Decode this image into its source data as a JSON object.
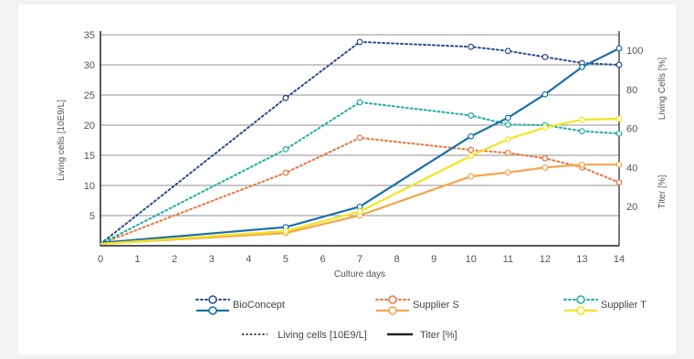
{
  "chart_data": {
    "type": "line",
    "xlabel": "Culture days",
    "ylabel_left": "Living cells [10E9/L]",
    "ylabel_right_upper": "Living Cells [%]",
    "ylabel_right_lower": "Titer [%]",
    "x_ticks": [
      0,
      1,
      2,
      3,
      4,
      5,
      6,
      7,
      8,
      9,
      10,
      11,
      12,
      13,
      14
    ],
    "xlim": [
      0,
      14
    ],
    "y_left_ticks": [
      5,
      10,
      15,
      20,
      25,
      30,
      35
    ],
    "ylim_left": [
      0,
      35
    ],
    "y_right_ticks": [
      20,
      40,
      60,
      80,
      100
    ],
    "ylim_right": [
      0,
      108
    ],
    "grid": "horizontal",
    "series": [
      {
        "name": "BioConcept",
        "kind": "living_cells",
        "style": "dotted",
        "color": "#2c4a8c",
        "axis": "left",
        "x": [
          0,
          5,
          7,
          10,
          11,
          12,
          13,
          14
        ],
        "y": [
          0.3,
          24.5,
          33.8,
          33.0,
          32.3,
          31.3,
          30.3,
          30.0
        ]
      },
      {
        "name": "Supplier S",
        "kind": "living_cells",
        "style": "dotted",
        "color": "#f0733c",
        "axis": "left",
        "x": [
          0,
          5,
          7,
          10,
          11,
          12,
          13,
          14
        ],
        "y": [
          0.3,
          12.1,
          17.9,
          15.9,
          15.4,
          14.5,
          13.0,
          10.5
        ]
      },
      {
        "name": "Supplier T",
        "kind": "living_cells",
        "style": "dotted",
        "color": "#1fada3",
        "axis": "left",
        "x": [
          0,
          5,
          7,
          10,
          11,
          12,
          13,
          14
        ],
        "y": [
          0.3,
          16.0,
          23.8,
          21.6,
          20.1,
          20.0,
          19.0,
          18.6
        ]
      },
      {
        "name": "BioConcept",
        "kind": "titer",
        "style": "solid",
        "color": "#1a6fab",
        "axis": "right",
        "x": [
          0,
          5,
          7,
          10,
          11,
          12,
          13,
          14
        ],
        "y": [
          1.5,
          9.5,
          20.0,
          56.0,
          65.5,
          77.5,
          91.5,
          101.0
        ]
      },
      {
        "name": "Supplier S",
        "kind": "titer",
        "style": "solid",
        "color": "#f5a54a",
        "axis": "right",
        "x": [
          0,
          5,
          7,
          10,
          11,
          12,
          13,
          14
        ],
        "y": [
          1.0,
          6.5,
          15.5,
          35.5,
          37.5,
          40.0,
          41.5,
          41.5
        ]
      },
      {
        "name": "Supplier T",
        "kind": "titer",
        "style": "solid",
        "color": "#f3e420",
        "axis": "right",
        "x": [
          0,
          5,
          7,
          10,
          11,
          12,
          13,
          14
        ],
        "y": [
          1.0,
          7.5,
          17.5,
          46.0,
          54.5,
          60.5,
          64.5,
          65.0
        ]
      }
    ],
    "legend": {
      "placement": "bottom",
      "entries": [
        "BioConcept",
        "Supplier S",
        "Supplier T"
      ],
      "style_key": [
        {
          "label": "Living cells [10E9/L]",
          "style": "dotted"
        },
        {
          "label": "Titer [%]",
          "style": "solid"
        }
      ]
    }
  }
}
